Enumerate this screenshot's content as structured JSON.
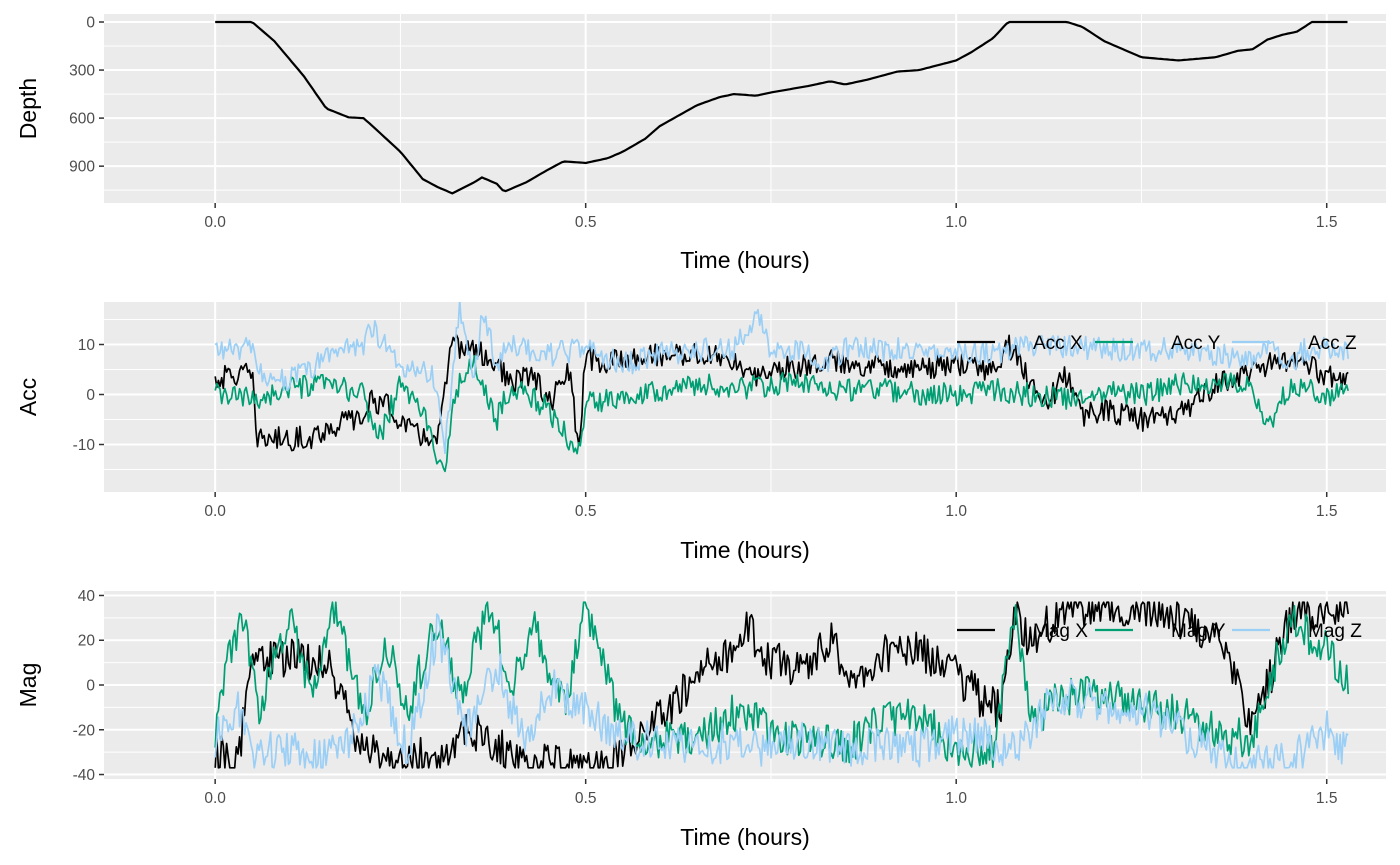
{
  "chart_data": [
    {
      "type": "line",
      "xlabel": "Time (hours)",
      "ylabel": "Depth",
      "y_reversed": true,
      "xlim": [
        -0.15,
        1.58
      ],
      "ylim": [
        1130,
        -50
      ],
      "x_ticks": [
        0,
        0.5,
        1,
        1.5
      ],
      "x_tick_labels": [
        "0.0",
        "0.5",
        "1.0",
        "1.5"
      ],
      "y_ticks": [
        0,
        300,
        600,
        900
      ],
      "y_tick_labels": [
        "0",
        "300",
        "600",
        "900"
      ],
      "grid": true,
      "legend": null,
      "series": [
        {
          "color": "#000000",
          "x": [
            0,
            0.05,
            0.08,
            0.12,
            0.15,
            0.18,
            0.2,
            0.21,
            0.25,
            0.28,
            0.3,
            0.32,
            0.35,
            0.36,
            0.38,
            0.39,
            0.4,
            0.42,
            0.45,
            0.47,
            0.5,
            0.53,
            0.55,
            0.58,
            0.6,
            0.65,
            0.68,
            0.7,
            0.73,
            0.75,
            0.8,
            0.83,
            0.85,
            0.88,
            0.92,
            0.95,
            1.0,
            1.02,
            1.05,
            1.07,
            1.09,
            1.12,
            1.15,
            1.17,
            1.2,
            1.25,
            1.3,
            1.35,
            1.38,
            1.4,
            1.42,
            1.44,
            1.46,
            1.48,
            1.5,
            1.53
          ],
          "y": [
            0,
            0,
            120,
            340,
            540,
            595,
            600,
            640,
            810,
            980,
            1030,
            1070,
            1000,
            970,
            1010,
            1060,
            1040,
            1000,
            920,
            870,
            880,
            850,
            810,
            730,
            650,
            520,
            470,
            450,
            460,
            440,
            400,
            370,
            390,
            360,
            310,
            300,
            240,
            190,
            100,
            0,
            0,
            0,
            0,
            30,
            120,
            220,
            240,
            220,
            180,
            170,
            110,
            80,
            60,
            0,
            0,
            0
          ]
        }
      ]
    },
    {
      "type": "line",
      "xlabel": "Time (hours)",
      "ylabel": "Acc",
      "xlim": [
        -0.15,
        1.58
      ],
      "ylim": [
        -19.5,
        18.5
      ],
      "x_ticks": [
        0,
        0.5,
        1,
        1.5
      ],
      "x_tick_labels": [
        "0.0",
        "0.5",
        "1.0",
        "1.5"
      ],
      "y_ticks": [
        -10,
        0,
        10
      ],
      "y_tick_labels": [
        "-10",
        "0",
        "10"
      ],
      "grid": true,
      "legend": "top-right",
      "series": [
        {
          "name": "Acc X",
          "color": "#000000",
          "x": [
            0,
            0.03,
            0.05,
            0.055,
            0.1,
            0.13,
            0.15,
            0.18,
            0.2,
            0.21,
            0.23,
            0.27,
            0.3,
            0.32,
            0.35,
            0.38,
            0.4,
            0.43,
            0.45,
            0.48,
            0.49,
            0.5,
            0.52,
            0.55,
            0.6,
            0.65,
            0.7,
            0.72,
            0.75,
            0.8,
            0.82,
            0.85,
            0.9,
            0.95,
            1.0,
            1.05,
            1.07,
            1.1,
            1.12,
            1.15,
            1.17,
            1.2,
            1.25,
            1.3,
            1.35,
            1.4,
            1.45,
            1.5,
            1.53
          ],
          "y": [
            3,
            4,
            4,
            -8.5,
            -9,
            -8.5,
            -7,
            -5,
            -5,
            -1,
            -2,
            -8,
            -9,
            10,
            9,
            6,
            2,
            4,
            -2,
            5,
            -13,
            8,
            6,
            7,
            8,
            8,
            7,
            3,
            5,
            6,
            7,
            6,
            6,
            5,
            6,
            5,
            10,
            3,
            -2,
            4,
            -4,
            -3,
            -5,
            -4,
            2,
            5,
            7,
            4,
            2
          ]
        },
        {
          "name": "Acc Y",
          "color": "#009E73",
          "x": [
            0,
            0.05,
            0.1,
            0.15,
            0.2,
            0.22,
            0.25,
            0.28,
            0.31,
            0.32,
            0.35,
            0.38,
            0.4,
            0.45,
            0.49,
            0.5,
            0.55,
            0.6,
            0.65,
            0.7,
            0.75,
            0.8,
            0.85,
            0.9,
            0.95,
            1.0,
            1.05,
            1.1,
            1.15,
            1.2,
            1.25,
            1.3,
            1.35,
            1.4,
            1.42,
            1.45,
            1.5,
            1.53
          ],
          "y": [
            0,
            -1,
            1,
            2,
            0,
            -9,
            2,
            -3,
            -18,
            0,
            6,
            -5,
            2,
            -3,
            -12,
            -2,
            0,
            1,
            2,
            1,
            2,
            2,
            1,
            1,
            0,
            0,
            1,
            0,
            -1,
            1,
            0,
            2,
            2,
            2,
            -7,
            2,
            0,
            0
          ]
        },
        {
          "name": "Acc Z",
          "color": "#9BCFF5",
          "x": [
            0,
            0.05,
            0.06,
            0.1,
            0.13,
            0.16,
            0.2,
            0.21,
            0.25,
            0.28,
            0.3,
            0.31,
            0.33,
            0.35,
            0.36,
            0.38,
            0.4,
            0.45,
            0.5,
            0.55,
            0.6,
            0.65,
            0.7,
            0.73,
            0.75,
            0.8,
            0.82,
            0.85,
            0.9,
            1.0,
            1.05,
            1.1,
            1.2,
            1.3,
            1.4,
            1.43,
            1.45,
            1.47,
            1.5,
            1.53
          ],
          "y": [
            9,
            9,
            4,
            3,
            5,
            9,
            10,
            14,
            5,
            6,
            2,
            -10,
            17,
            3,
            17,
            6,
            10,
            8,
            9,
            6,
            8,
            9,
            9,
            16,
            9,
            9,
            6,
            9,
            9,
            9,
            8,
            10,
            9,
            9,
            7,
            10,
            5,
            9,
            9,
            8
          ]
        }
      ]
    },
    {
      "type": "line",
      "xlabel": "Time (hours)",
      "ylabel": "Mag",
      "xlim": [
        -0.15,
        1.58
      ],
      "ylim": [
        -42,
        42
      ],
      "x_ticks": [
        0,
        0.5,
        1,
        1.5
      ],
      "x_tick_labels": [
        "0.0",
        "0.5",
        "1.0",
        "1.5"
      ],
      "y_ticks": [
        -40,
        -20,
        0,
        20,
        40
      ],
      "y_tick_labels": [
        "-40",
        "-20",
        "0",
        "20",
        "40"
      ],
      "grid": true,
      "legend": "top-right",
      "series": [
        {
          "name": "Mag X",
          "color": "#000000",
          "x": [
            0,
            0.03,
            0.05,
            0.1,
            0.15,
            0.2,
            0.25,
            0.3,
            0.35,
            0.4,
            0.45,
            0.5,
            0.55,
            0.6,
            0.65,
            0.7,
            0.72,
            0.75,
            0.8,
            0.83,
            0.86,
            0.9,
            0.95,
            1.0,
            1.03,
            1.06,
            1.08,
            1.1,
            1.15,
            1.2,
            1.25,
            1.3,
            1.35,
            1.38,
            1.4,
            1.45,
            1.5,
            1.53
          ],
          "y": [
            -30,
            -35,
            12,
            12,
            10,
            -30,
            -35,
            -30,
            -20,
            -32,
            -35,
            -35,
            -30,
            -15,
            5,
            15,
            25,
            10,
            8,
            20,
            0,
            15,
            15,
            5,
            -5,
            -12,
            30,
            20,
            35,
            35,
            35,
            30,
            20,
            0,
            -20,
            30,
            35,
            30
          ]
        },
        {
          "name": "Mag Y",
          "color": "#009E73",
          "x": [
            0,
            0.02,
            0.04,
            0.06,
            0.1,
            0.13,
            0.16,
            0.2,
            0.23,
            0.26,
            0.3,
            0.33,
            0.37,
            0.4,
            0.43,
            0.47,
            0.5,
            0.55,
            0.6,
            0.65,
            0.7,
            0.75,
            0.8,
            0.85,
            0.9,
            0.95,
            1.0,
            1.05,
            1.08,
            1.1,
            1.15,
            1.2,
            1.25,
            1.3,
            1.35,
            1.4,
            1.45,
            1.5,
            1.53
          ],
          "y": [
            -20,
            15,
            28,
            -12,
            30,
            -5,
            35,
            -15,
            20,
            -10,
            30,
            -5,
            36,
            0,
            25,
            -10,
            35,
            -20,
            -25,
            -25,
            -12,
            -20,
            -25,
            -28,
            -15,
            -12,
            -32,
            -28,
            30,
            -15,
            -5,
            -5,
            -10,
            -12,
            -20,
            -25,
            30,
            15,
            0
          ]
        },
        {
          "name": "Mag Z",
          "color": "#9BCFF5",
          "x": [
            0,
            0.03,
            0.05,
            0.1,
            0.15,
            0.18,
            0.22,
            0.26,
            0.3,
            0.34,
            0.38,
            0.42,
            0.45,
            0.5,
            0.55,
            0.6,
            0.65,
            0.7,
            0.75,
            0.8,
            0.85,
            0.9,
            0.95,
            1.0,
            1.05,
            1.08,
            1.12,
            1.15,
            1.2,
            1.25,
            1.3,
            1.35,
            1.4,
            1.45,
            1.5,
            1.53
          ],
          "y": [
            -25,
            -10,
            -30,
            -30,
            -32,
            -25,
            5,
            -30,
            25,
            -20,
            10,
            -30,
            0,
            -10,
            -25,
            -25,
            -28,
            -25,
            -28,
            -25,
            -28,
            -25,
            -28,
            -22,
            -25,
            -30,
            -10,
            -5,
            -10,
            -10,
            -20,
            -30,
            -35,
            -35,
            -20,
            -30
          ]
        }
      ]
    }
  ]
}
